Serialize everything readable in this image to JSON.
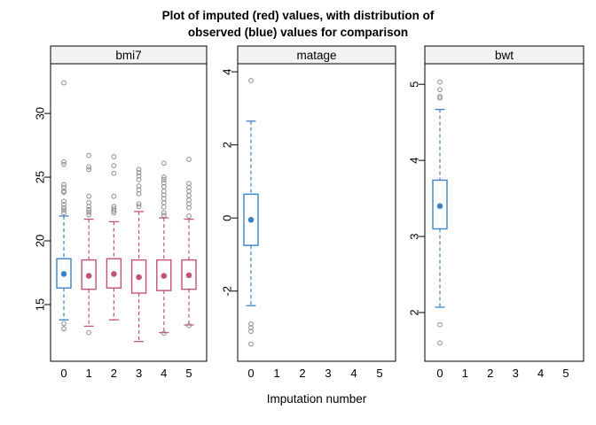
{
  "figure": {
    "background": "#ffffff"
  },
  "chart_data": {
    "type": "boxplot",
    "title_line1": "Plot of imputed (red) values, with distribution of",
    "title_line2": "observed (blue) values for comparison",
    "xlabel": "Imputation number",
    "x_ticks": [
      "0",
      "1",
      "2",
      "3",
      "4",
      "5"
    ],
    "legend_position": "none",
    "grid": false,
    "colors": {
      "observed": "#3C83C4",
      "imputed": "#C25377",
      "outlier": "#8C8C8C",
      "strip_bg": "#F2F2F2",
      "axis": "#000000"
    },
    "panels": [
      {
        "label": "bmi7",
        "yticks": [
          15,
          20,
          25,
          30
        ],
        "ylim": [
          10.55,
          33.9
        ],
        "boxes": [
          {
            "x": 0,
            "group": "observed",
            "low": 13.8,
            "q1": 16.3,
            "median": 17.4,
            "q3": 18.6,
            "high": 21.95,
            "outliers_high": [
              32.4,
              26.2,
              26.0,
              24.4,
              24.2,
              23.9,
              23.8,
              23.1,
              22.85,
              22.6,
              22.4,
              22.2
            ],
            "outliers_low": [
              13.5,
              13.1
            ]
          },
          {
            "x": 1,
            "group": "imputed",
            "low": 13.3,
            "q1": 16.2,
            "median": 17.25,
            "q3": 18.5,
            "high": 21.7,
            "outliers_high": [
              26.7,
              25.8,
              25.6,
              23.5,
              23.0,
              22.7,
              22.45,
              22.25,
              22.05
            ],
            "outliers_low": [
              12.8
            ]
          },
          {
            "x": 2,
            "group": "imputed",
            "low": 13.8,
            "q1": 16.3,
            "median": 17.4,
            "q3": 18.6,
            "high": 21.5,
            "outliers_high": [
              26.6,
              25.9,
              25.3,
              23.5,
              22.7,
              22.5,
              22.35,
              22.2
            ],
            "outliers_low": []
          },
          {
            "x": 3,
            "group": "imputed",
            "low": 12.1,
            "q1": 15.9,
            "median": 17.15,
            "q3": 18.5,
            "high": 22.3,
            "outliers_high": [
              25.6,
              25.35,
              25.1,
              24.8,
              24.3,
              24.0,
              23.7,
              22.9,
              22.7
            ],
            "outliers_low": []
          },
          {
            "x": 4,
            "group": "imputed",
            "low": 12.8,
            "q1": 16.1,
            "median": 17.25,
            "q3": 18.5,
            "high": 21.8,
            "outliers_high": [
              26.1,
              25.0,
              24.8,
              24.55,
              24.25,
              23.9,
              23.6,
              23.3,
              23.0,
              22.65,
              22.2,
              22.0
            ],
            "outliers_low": [
              12.75
            ]
          },
          {
            "x": 5,
            "group": "imputed",
            "low": 13.4,
            "q1": 16.2,
            "median": 17.3,
            "q3": 18.5,
            "high": 21.7,
            "outliers_high": [
              26.4,
              24.5,
              24.2,
              23.9,
              23.55,
              23.2,
              22.9,
              22.6,
              21.95
            ],
            "outliers_low": [
              13.35
            ]
          }
        ]
      },
      {
        "label": "matage",
        "yticks": [
          -2,
          0,
          2,
          4
        ],
        "ylim": [
          -3.92,
          4.22
        ],
        "boxes": [
          {
            "x": 0,
            "group": "observed",
            "low": -2.4,
            "q1": -0.75,
            "median": -0.05,
            "q3": 0.65,
            "high": 2.65,
            "outliers_high": [
              3.76
            ],
            "outliers_low": [
              -2.9,
              -3.0,
              -3.1,
              -3.45
            ]
          }
        ]
      },
      {
        "label": "bwt",
        "yticks": [
          2,
          3,
          4,
          5
        ],
        "ylim": [
          1.36,
          5.27
        ],
        "boxes": [
          {
            "x": 0,
            "group": "observed",
            "low": 2.07,
            "q1": 3.1,
            "median": 3.4,
            "q3": 3.74,
            "high": 4.67,
            "outliers_high": [
              5.03,
              4.93,
              4.84,
              4.82
            ],
            "outliers_low": [
              1.84,
              1.6
            ]
          }
        ]
      }
    ]
  }
}
